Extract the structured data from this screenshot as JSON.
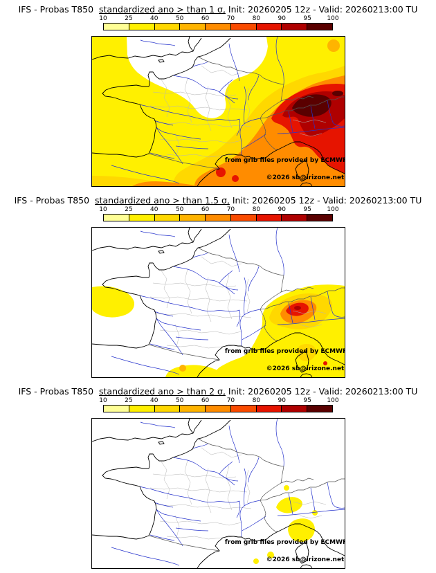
{
  "colorbar": {
    "ticks": [
      "10",
      "25",
      "40",
      "50",
      "60",
      "70",
      "80",
      "90",
      "95",
      "100"
    ],
    "colors": [
      "#ffff96",
      "#fff000",
      "#ffd800",
      "#ffb400",
      "#ff8c00",
      "#fa4b00",
      "#e61400",
      "#af0000",
      "#5a0000"
    ]
  },
  "panels": [
    {
      "title_prefix": "IFS - Probas T850  ",
      "title_mid": "standardized ano > than 1 σ,",
      "title_suffix": " Init: 20260205 12z - Valid: 20260213:00 TU",
      "credit": "from grib files provided by ECMWF",
      "copyright": "©2026 sb@irizone.net"
    },
    {
      "title_prefix": "IFS - Probas T850  ",
      "title_mid": "standardized ano > than 1.5 σ,",
      "title_suffix": " Init: 20260205 12z - Valid: 20260213:00 TU",
      "credit": "from grib files provided by ECMWF",
      "copyright": "©2026 sb@irizone.net"
    },
    {
      "title_prefix": "IFS - Probas T850  ",
      "title_mid": "standardized ano > than 2 σ,",
      "title_suffix": " Init: 20260205 12z - Valid: 20260213:00 TU",
      "credit": "from grib files provided by ECMWF",
      "copyright": "©2026 sb@irizone.net"
    }
  ],
  "chart_data": [
    {
      "type": "heatmap",
      "title": "IFS - Probas T850 standardized ano > than 1 σ, Init: 20260205 12z - Valid: 20260213:00 TU",
      "units": "%",
      "scale_ticks": [
        10,
        25,
        40,
        50,
        60,
        70,
        80,
        90,
        95,
        100
      ],
      "region": "France / western Europe",
      "summary": "Probabilities 10-60% (yellow) over most of France, the Atlantic, England and Spain; 60-90% (orange/red) along the Alps, Mediterranean coast, Pyrenees and Italy; maximum 90-100% (dark red) over northern Italy / eastern Alps; below 10% (white) over northern France and the Channel."
    },
    {
      "type": "heatmap",
      "title": "IFS - Probas T850 standardized ano > than 1.5 σ, Init: 20260205 12z - Valid: 20260213:00 TU",
      "units": "%",
      "scale_ticks": [
        10,
        25,
        40,
        50,
        60,
        70,
        80,
        90,
        95,
        100
      ],
      "region": "France / western Europe",
      "summary": "Mostly below 10% (white); 10-40% (yellow) west of Brittany, along the Pyrenees and from southeast France across northwest Italy, Liguria and Corsica; local maximum 70-90% (red) near the Gulf of Genoa."
    },
    {
      "type": "heatmap",
      "title": "IFS - Probas T850 standardized ano > than 2 σ, Init: 20260205 12z - Valid: 20260213:00 TU",
      "units": "%",
      "scale_ticks": [
        10,
        25,
        40,
        50,
        60,
        70,
        80,
        90,
        95,
        100
      ],
      "region": "France / western Europe",
      "summary": "Almost everywhere below 10% (white); isolated 10-25% (yellow) patches near Liguria, the sea around northern Corsica / Tuscan archipelago and small spots over the western Mediterranean."
    }
  ]
}
